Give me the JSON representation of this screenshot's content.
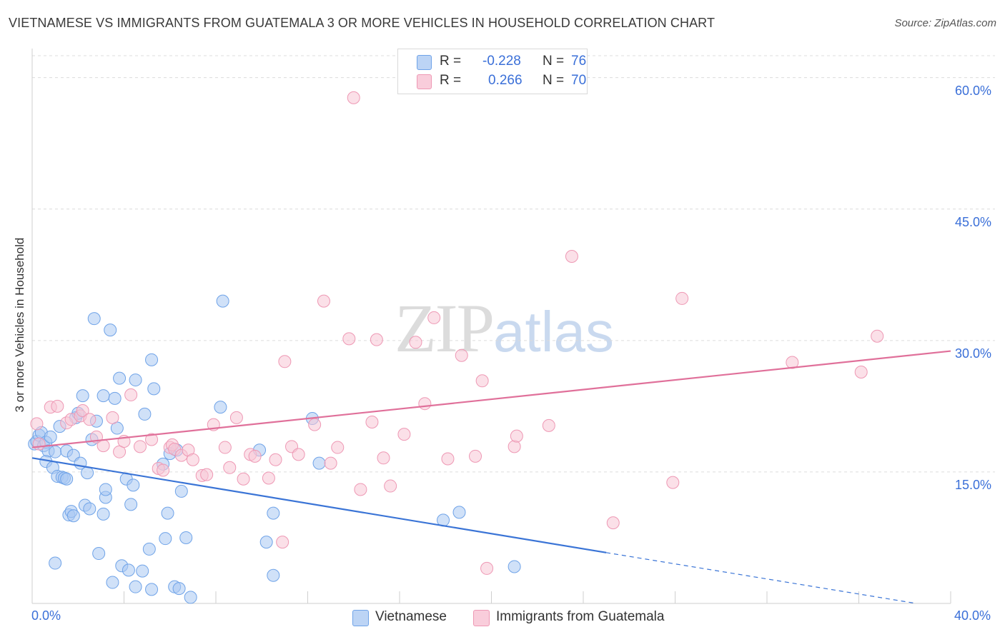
{
  "title": "VIETNAMESE VS IMMIGRANTS FROM GUATEMALA 3 OR MORE VEHICLES IN HOUSEHOLD CORRELATION CHART",
  "source": "Source: ZipAtlas.com",
  "watermark": {
    "a": "ZIP",
    "b": "atlas"
  },
  "legend": {
    "r_label": "R =",
    "n_label": "N =",
    "rows": [
      {
        "r": "-0.228",
        "n": "76"
      },
      {
        "r": "0.266",
        "n": "70"
      }
    ]
  },
  "chart_data": {
    "type": "scatter",
    "title": "VIETNAMESE VS IMMIGRANTS FROM GUATEMALA 3 OR MORE VEHICLES IN HOUSEHOLD CORRELATION CHART",
    "xlabel": "",
    "ylabel": "3 or more Vehicles in Household",
    "xlim": [
      0,
      40
    ],
    "ylim": [
      0,
      62.5
    ],
    "x_ticks": [
      "0.0%",
      "40.0%"
    ],
    "y_ticks": [
      {
        "value": 15,
        "label": "15.0%"
      },
      {
        "value": 30,
        "label": "30.0%"
      },
      {
        "value": 45,
        "label": "45.0%"
      },
      {
        "value": 60,
        "label": "60.0%"
      }
    ],
    "grid": true,
    "legend_position": "bottom",
    "series": [
      {
        "name": "Vietnamese",
        "color": "#6fa3e8",
        "fill": "#aac8f2",
        "r": -0.228,
        "n": 76,
        "trend": {
          "x0": 0,
          "y0": 16.6,
          "x1": 25,
          "y1": 5.8,
          "dash_to_x": 38.5,
          "dash_to_y": 0
        },
        "points": [
          [
            0.1,
            18.2
          ],
          [
            0.2,
            18.5
          ],
          [
            0.3,
            19.2
          ],
          [
            0.4,
            19.5
          ],
          [
            0.5,
            18.0
          ],
          [
            0.6,
            18.4
          ],
          [
            0.8,
            19.0
          ],
          [
            0.7,
            17.4
          ],
          [
            0.6,
            16.2
          ],
          [
            0.9,
            15.5
          ],
          [
            1.0,
            17.3
          ],
          [
            1.1,
            14.5
          ],
          [
            1.2,
            20.2
          ],
          [
            1.3,
            14.4
          ],
          [
            1.4,
            14.3
          ],
          [
            1.5,
            14.2
          ],
          [
            1.5,
            17.4
          ],
          [
            1.6,
            10.1
          ],
          [
            1.7,
            10.5
          ],
          [
            1.8,
            10.0
          ],
          [
            1.8,
            16.9
          ],
          [
            1.9,
            21.2
          ],
          [
            2.0,
            21.7
          ],
          [
            2.1,
            16.0
          ],
          [
            2.2,
            23.7
          ],
          [
            2.3,
            11.2
          ],
          [
            2.4,
            14.9
          ],
          [
            2.5,
            10.8
          ],
          [
            2.6,
            18.7
          ],
          [
            2.7,
            32.5
          ],
          [
            2.8,
            20.8
          ],
          [
            2.9,
            5.7
          ],
          [
            3.1,
            23.7
          ],
          [
            3.1,
            10.2
          ],
          [
            3.2,
            12.1
          ],
          [
            3.2,
            13.0
          ],
          [
            3.4,
            31.2
          ],
          [
            3.5,
            2.4
          ],
          [
            3.6,
            23.4
          ],
          [
            3.7,
            20.0
          ],
          [
            3.8,
            25.7
          ],
          [
            3.9,
            4.3
          ],
          [
            4.1,
            14.2
          ],
          [
            4.2,
            3.8
          ],
          [
            4.3,
            11.3
          ],
          [
            4.4,
            13.5
          ],
          [
            4.5,
            1.9
          ],
          [
            4.5,
            25.5
          ],
          [
            4.8,
            3.7
          ],
          [
            4.9,
            21.6
          ],
          [
            5.1,
            6.2
          ],
          [
            5.2,
            27.8
          ],
          [
            5.2,
            1.6
          ],
          [
            5.3,
            24.5
          ],
          [
            5.7,
            15.9
          ],
          [
            5.8,
            7.4
          ],
          [
            5.9,
            10.3
          ],
          [
            6.0,
            17.1
          ],
          [
            6.2,
            1.9
          ],
          [
            6.3,
            17.5
          ],
          [
            6.4,
            1.7
          ],
          [
            6.5,
            12.8
          ],
          [
            6.7,
            7.5
          ],
          [
            6.9,
            0.7
          ],
          [
            8.2,
            22.4
          ],
          [
            8.3,
            34.5
          ],
          [
            9.9,
            17.5
          ],
          [
            10.2,
            7.0
          ],
          [
            10.5,
            10.3
          ],
          [
            10.5,
            3.2
          ],
          [
            12.2,
            21.1
          ],
          [
            12.5,
            16.0
          ],
          [
            17.9,
            9.5
          ],
          [
            18.6,
            10.4
          ],
          [
            21.0,
            4.2
          ],
          [
            1.0,
            4.6
          ]
        ]
      },
      {
        "name": "Immigrants from Guatemala",
        "color": "#ee98b4",
        "fill": "#f8c6d6",
        "r": 0.266,
        "n": 70,
        "trend": {
          "x0": 0,
          "y0": 17.8,
          "x1": 40,
          "y1": 28.8
        },
        "points": [
          [
            0.2,
            20.5
          ],
          [
            0.8,
            22.4
          ],
          [
            1.1,
            22.5
          ],
          [
            1.5,
            20.6
          ],
          [
            1.7,
            21.0
          ],
          [
            2.1,
            21.4
          ],
          [
            2.2,
            22.0
          ],
          [
            2.5,
            21.0
          ],
          [
            2.8,
            19.0
          ],
          [
            3.1,
            18.0
          ],
          [
            3.5,
            21.2
          ],
          [
            3.8,
            17.3
          ],
          [
            4.0,
            18.5
          ],
          [
            4.3,
            23.8
          ],
          [
            4.7,
            17.9
          ],
          [
            5.2,
            18.7
          ],
          [
            5.5,
            15.4
          ],
          [
            5.7,
            15.2
          ],
          [
            6.0,
            17.8
          ],
          [
            6.1,
            18.1
          ],
          [
            6.2,
            17.6
          ],
          [
            6.5,
            16.9
          ],
          [
            6.8,
            17.5
          ],
          [
            7.0,
            16.4
          ],
          [
            7.4,
            14.6
          ],
          [
            7.6,
            14.7
          ],
          [
            7.9,
            20.4
          ],
          [
            8.4,
            17.8
          ],
          [
            8.6,
            15.5
          ],
          [
            8.9,
            21.2
          ],
          [
            9.2,
            14.2
          ],
          [
            9.5,
            17.0
          ],
          [
            9.7,
            16.8
          ],
          [
            10.3,
            14.3
          ],
          [
            10.6,
            16.4
          ],
          [
            10.9,
            7.0
          ],
          [
            11.0,
            27.6
          ],
          [
            11.3,
            17.9
          ],
          [
            11.6,
            17.0
          ],
          [
            12.3,
            20.4
          ],
          [
            12.7,
            34.5
          ],
          [
            13.0,
            16.0
          ],
          [
            13.3,
            17.8
          ],
          [
            13.8,
            30.2
          ],
          [
            14.0,
            57.7
          ],
          [
            14.3,
            13.0
          ],
          [
            14.8,
            20.7
          ],
          [
            15.0,
            30.1
          ],
          [
            15.3,
            16.6
          ],
          [
            15.6,
            13.4
          ],
          [
            16.2,
            19.3
          ],
          [
            16.7,
            29.8
          ],
          [
            17.1,
            22.8
          ],
          [
            17.5,
            32.6
          ],
          [
            18.1,
            16.5
          ],
          [
            18.7,
            28.3
          ],
          [
            19.3,
            16.8
          ],
          [
            19.6,
            25.4
          ],
          [
            19.8,
            4.0
          ],
          [
            21.0,
            17.9
          ],
          [
            21.1,
            19.1
          ],
          [
            22.5,
            20.3
          ],
          [
            23.5,
            39.6
          ],
          [
            25.3,
            9.2
          ],
          [
            27.9,
            13.8
          ],
          [
            28.3,
            34.8
          ],
          [
            33.1,
            27.5
          ],
          [
            36.1,
            26.4
          ],
          [
            36.8,
            30.5
          ],
          [
            0.3,
            18.2
          ]
        ]
      }
    ]
  }
}
